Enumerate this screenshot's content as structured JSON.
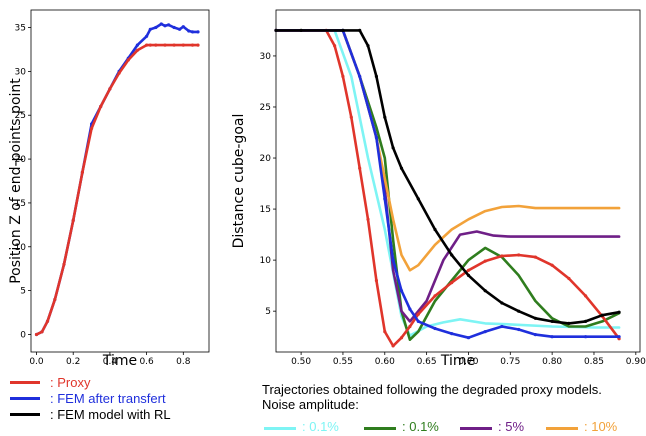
{
  "chart_data": [
    {
      "type": "line",
      "xlabel": "Time",
      "ylabel": "Position Z of end-points point",
      "xlim": [
        -0.03,
        0.94
      ],
      "ylim": [
        -2,
        37
      ],
      "xticks": [
        0.0,
        0.2,
        0.4,
        0.6,
        0.8
      ],
      "xtick_labels": [
        "0.0",
        "0.2",
        "0.4",
        "0.6",
        "0.8"
      ],
      "yticks": [
        0,
        5,
        10,
        15,
        20,
        25,
        30,
        35
      ],
      "ytick_labels": [
        "0",
        "5",
        "10",
        "15",
        "20",
        "25",
        "30",
        "35"
      ],
      "grid": false,
      "series": [
        {
          "name": "FEM after transfert",
          "color": "#1f2fdc",
          "marker": "dot",
          "x": [
            0.0,
            0.03,
            0.06,
            0.1,
            0.15,
            0.2,
            0.25,
            0.3,
            0.35,
            0.4,
            0.45,
            0.5,
            0.55,
            0.6,
            0.62,
            0.65,
            0.68,
            0.7,
            0.72,
            0.75,
            0.78,
            0.8,
            0.83,
            0.85,
            0.88
          ],
          "y": [
            0,
            0.3,
            1.5,
            4,
            8,
            13,
            18.5,
            24,
            26,
            28,
            30,
            31.5,
            33,
            34,
            34.8,
            35,
            35.4,
            35.2,
            35.3,
            35,
            34.8,
            35.1,
            34.6,
            34.5,
            34.5
          ]
        },
        {
          "name": "Proxy",
          "color": "#e0352b",
          "marker": "dot",
          "x": [
            0.0,
            0.03,
            0.06,
            0.1,
            0.15,
            0.2,
            0.25,
            0.3,
            0.35,
            0.4,
            0.45,
            0.5,
            0.55,
            0.6,
            0.62,
            0.65,
            0.7,
            0.75,
            0.8,
            0.85,
            0.88
          ],
          "y": [
            0,
            0.3,
            1.5,
            4,
            8,
            13,
            18.5,
            23.5,
            26,
            28,
            29.8,
            31.3,
            32.4,
            33,
            33,
            33,
            33,
            33,
            33,
            33,
            33
          ]
        }
      ]
    },
    {
      "type": "line",
      "xlabel": "Time",
      "ylabel": "Distance cube-goal",
      "xlim": [
        0.47,
        0.905
      ],
      "ylim": [
        1,
        34.5
      ],
      "xticks": [
        0.5,
        0.55,
        0.6,
        0.65,
        0.7,
        0.75,
        0.8,
        0.85,
        0.9
      ],
      "xtick_labels": [
        "0.50",
        "0.55",
        "0.60",
        "0.65",
        "0.70",
        "0.75",
        "0.80",
        "0.85",
        "0.90"
      ],
      "yticks": [
        5,
        10,
        15,
        20,
        25,
        30
      ],
      "ytick_labels": [
        "5",
        "10",
        "15",
        "20",
        "25",
        "30"
      ],
      "grid": false,
      "series": [
        {
          "name": "0.1%",
          "color": "#7ef4f4",
          "marker": "none",
          "x": [
            0.47,
            0.54,
            0.56,
            0.58,
            0.6,
            0.62,
            0.63,
            0.65,
            0.67,
            0.69,
            0.72,
            0.75,
            0.8,
            0.85,
            0.88
          ],
          "y": [
            32.5,
            32.5,
            28,
            20,
            13,
            4.5,
            2.6,
            3.5,
            3.9,
            4.2,
            3.8,
            3.7,
            3.5,
            3.4,
            3.4
          ]
        },
        {
          "name": "0.1%",
          "color": "#2f7d1e",
          "marker": "none",
          "x": [
            0.47,
            0.55,
            0.57,
            0.59,
            0.6,
            0.61,
            0.62,
            0.63,
            0.64,
            0.66,
            0.68,
            0.7,
            0.72,
            0.74,
            0.76,
            0.78,
            0.8,
            0.82,
            0.84,
            0.86,
            0.88
          ],
          "y": [
            32.5,
            32.5,
            28,
            23,
            20,
            12,
            5,
            2.2,
            3,
            6,
            8,
            10,
            11.2,
            10.3,
            8.5,
            6,
            4.3,
            3.5,
            3.5,
            4,
            4.8
          ]
        },
        {
          "name": "5%",
          "color": "#6f1f87",
          "marker": "none",
          "x": [
            0.47,
            0.55,
            0.57,
            0.59,
            0.6,
            0.61,
            0.62,
            0.63,
            0.65,
            0.67,
            0.69,
            0.71,
            0.73,
            0.75,
            0.8,
            0.85,
            0.88
          ],
          "y": [
            32.5,
            32.5,
            28,
            22,
            17,
            9,
            5,
            4,
            6,
            10,
            12.5,
            12.8,
            12.4,
            12.3,
            12.3,
            12.3,
            12.3
          ]
        },
        {
          "name": "10%",
          "color": "#f2a23a",
          "marker": "none",
          "x": [
            0.47,
            0.55,
            0.57,
            0.59,
            0.61,
            0.62,
            0.63,
            0.64,
            0.66,
            0.68,
            0.7,
            0.72,
            0.74,
            0.76,
            0.78,
            0.8,
            0.85,
            0.88
          ],
          "y": [
            32.5,
            32.5,
            28,
            22,
            14,
            10.5,
            9,
            9.5,
            11.5,
            13,
            14,
            14.8,
            15.2,
            15.3,
            15.1,
            15.1,
            15.1,
            15.1
          ]
        },
        {
          "name": "Proxy",
          "color": "#e0352b",
          "marker": "dot",
          "x": [
            0.47,
            0.53,
            0.54,
            0.55,
            0.56,
            0.57,
            0.58,
            0.59,
            0.6,
            0.61,
            0.62,
            0.63,
            0.64,
            0.66,
            0.68,
            0.7,
            0.72,
            0.74,
            0.76,
            0.78,
            0.8,
            0.82,
            0.84,
            0.86,
            0.88
          ],
          "y": [
            32.5,
            32.5,
            31,
            28,
            24,
            19,
            14,
            8,
            3,
            1.6,
            2.4,
            3.5,
            4.7,
            6.5,
            7.8,
            9,
            9.9,
            10.4,
            10.5,
            10.3,
            9.5,
            8.2,
            6.5,
            4.5,
            2.3
          ]
        },
        {
          "name": "FEM after transfert",
          "color": "#1f2fdc",
          "marker": "dot",
          "x": [
            0.47,
            0.55,
            0.57,
            0.59,
            0.6,
            0.61,
            0.62,
            0.63,
            0.64,
            0.66,
            0.68,
            0.7,
            0.72,
            0.74,
            0.76,
            0.78,
            0.8,
            0.84,
            0.88
          ],
          "y": [
            32.5,
            32.5,
            28,
            22,
            16,
            10,
            7,
            5.2,
            4,
            3.3,
            2.8,
            2.4,
            3,
            3.5,
            3.2,
            2.7,
            2.5,
            2.5,
            2.5
          ]
        },
        {
          "name": "FEM model with RL",
          "color": "#000000",
          "marker": "dot",
          "x": [
            0.47,
            0.5,
            0.55,
            0.57,
            0.58,
            0.59,
            0.6,
            0.61,
            0.62,
            0.64,
            0.66,
            0.68,
            0.7,
            0.72,
            0.74,
            0.76,
            0.78,
            0.8,
            0.82,
            0.84,
            0.86,
            0.88
          ],
          "y": [
            32.5,
            32.5,
            32.5,
            32.5,
            31,
            28,
            24,
            21,
            19,
            16,
            13,
            10.5,
            8.5,
            7,
            5.8,
            5,
            4.3,
            4,
            3.8,
            4,
            4.6,
            4.9
          ]
        }
      ]
    }
  ],
  "legend": [
    {
      "label": ": Proxy",
      "color": "#e0352b"
    },
    {
      "label": ": FEM after transfert",
      "color": "#1f2fdc"
    },
    {
      "label": ": FEM model with RL",
      "color": "#000000"
    }
  ],
  "caption": {
    "line1": "Trajectories obtained following the degraded proxy models.",
    "line2": "Noise amplitude:"
  },
  "noise_legend": [
    {
      "label": ": 0.1%",
      "color": "#7ef4f4"
    },
    {
      "label": ": 0.1%",
      "color": "#2f7d1e"
    },
    {
      "label": ": 5%",
      "color": "#6f1f87"
    },
    {
      "label": ": 10%",
      "color": "#f2a23a"
    }
  ]
}
